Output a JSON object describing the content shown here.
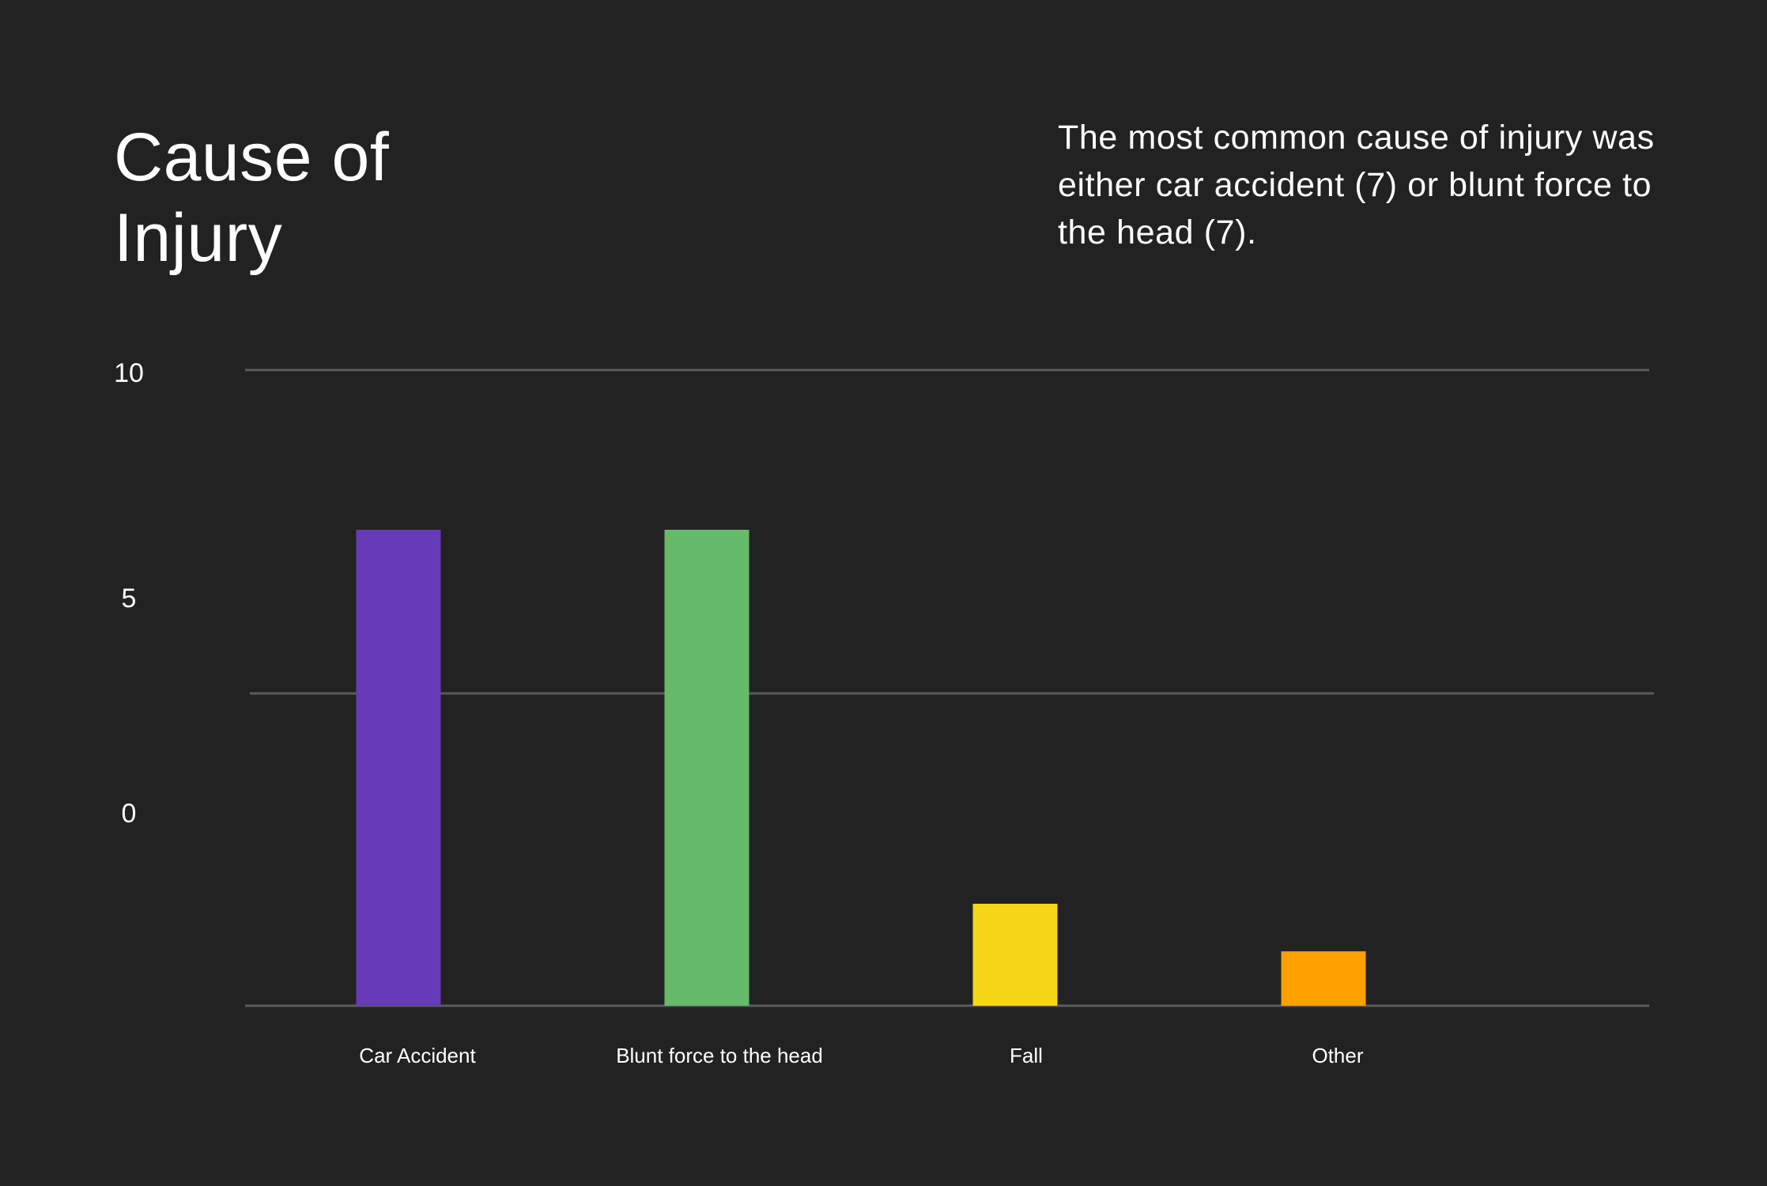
{
  "chart_data": {
    "type": "bar",
    "title": "Cause of Injury",
    "annotation": "The most common cause of injury was either car accident (7) or blunt force to the head (7).",
    "categories": [
      "Car Accident",
      "Blunt force to the head",
      "Fall",
      "Other"
    ],
    "values": [
      7,
      7,
      1.5,
      0.8
    ],
    "colors": [
      "#673AB7",
      "#66BB6A",
      "#F5D515",
      "#FFA000"
    ],
    "yticks": [
      "10",
      "5",
      "0"
    ],
    "ylim": [
      0,
      10
    ],
    "xlabel": "",
    "ylabel": "",
    "grid": true
  },
  "theme": {
    "background": "#222222",
    "text": "#ffffff",
    "gridline": "#5c5c5c"
  }
}
